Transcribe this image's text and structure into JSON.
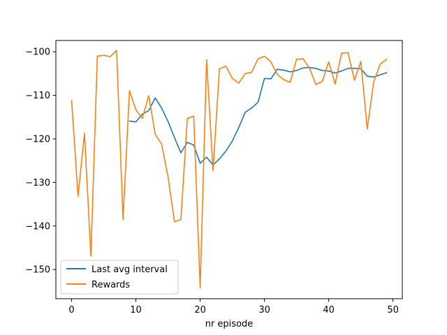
{
  "chart_data": {
    "type": "line",
    "title": "",
    "xlabel": "nr episode",
    "ylabel": "",
    "xlim": [
      -2.45,
      51.45
    ],
    "ylim": [
      -156.7,
      -97.4
    ],
    "xticks": [
      0,
      10,
      20,
      30,
      40,
      50
    ],
    "yticks": [
      -150,
      -140,
      -130,
      -120,
      -110,
      -100
    ],
    "grid": false,
    "legend_position": "lower-left",
    "series": [
      {
        "name": "Last avg interval",
        "color": "#1f77b4",
        "x": [
          9,
          10,
          11,
          12,
          13,
          14,
          15,
          16,
          17,
          18,
          19,
          20,
          21,
          22,
          23,
          24,
          25,
          26,
          27,
          28,
          29,
          30,
          31,
          32,
          33,
          34,
          35,
          36,
          37,
          38,
          39,
          40,
          41,
          42,
          43,
          44,
          45,
          46,
          47,
          48,
          49
        ],
        "values": [
          -115.9,
          -116.1,
          -114.3,
          -113.5,
          -110.6,
          -112.9,
          -116.0,
          -119.7,
          -123.2,
          -120.8,
          -121.4,
          -125.6,
          -124.2,
          -126.0,
          -124.6,
          -122.8,
          -120.5,
          -117.4,
          -113.9,
          -112.9,
          -111.6,
          -106.1,
          -106.2,
          -104.0,
          -104.2,
          -104.6,
          -104.3,
          -103.7,
          -103.6,
          -103.8,
          -104.3,
          -104.4,
          -104.9,
          -104.4,
          -103.8,
          -103.8,
          -103.9,
          -105.6,
          -105.8,
          -105.3,
          -104.8
        ]
      },
      {
        "name": "Rewards",
        "color": "#ff7f0e",
        "x": [
          0,
          1,
          2,
          3,
          4,
          5,
          6,
          7,
          8,
          9,
          10,
          11,
          12,
          13,
          14,
          15,
          16,
          17,
          18,
          19,
          20,
          21,
          22,
          23,
          24,
          25,
          26,
          27,
          28,
          29,
          30,
          31,
          32,
          33,
          34,
          35,
          36,
          37,
          38,
          39,
          40,
          41,
          42,
          43,
          44,
          45,
          46,
          47,
          48,
          49
        ],
        "values": [
          -111.2,
          -133.2,
          -118.7,
          -146.9,
          -101.0,
          -100.8,
          -101.1,
          -99.7,
          -138.5,
          -108.9,
          -113.3,
          -115.3,
          -110.1,
          -118.9,
          -121.2,
          -128.7,
          -139.0,
          -138.5,
          -115.3,
          -114.8,
          -154.2,
          -101.8,
          -127.3,
          -103.9,
          -103.3,
          -106.1,
          -107.2,
          -105.0,
          -104.7,
          -101.6,
          -101.0,
          -102.3,
          -105.2,
          -106.4,
          -107.0,
          -101.7,
          -101.6,
          -103.7,
          -107.5,
          -106.8,
          -102.3,
          -107.4,
          -100.3,
          -100.2,
          -106.5,
          -102.2,
          -117.7,
          -106.9,
          -102.9,
          -101.7
        ]
      }
    ]
  }
}
